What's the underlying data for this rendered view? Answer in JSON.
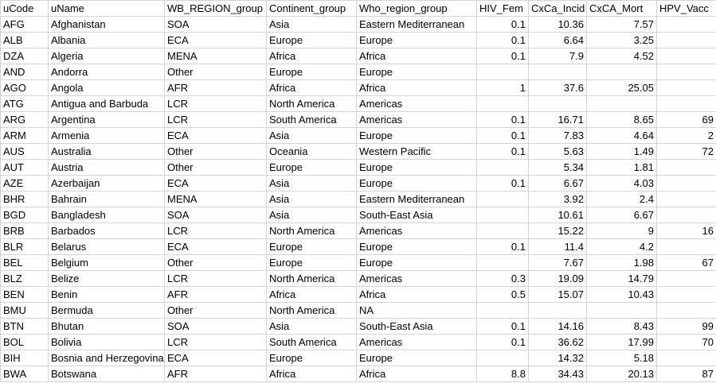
{
  "columns": [
    "uCode",
    "uName",
    "WB_REGION_group",
    "Continent_group",
    "Who_region_group",
    "HIV_Fem",
    "CxCa_Incid",
    "CxCA_Mort",
    "HPV_Vacc"
  ],
  "rows": [
    [
      "AFG",
      "Afghanistan",
      "SOA",
      "Asia",
      "Eastern Mediterranean",
      "0.1",
      "10.36",
      "7.57",
      ""
    ],
    [
      "ALB",
      "Albania",
      "ECA",
      "Europe",
      "Europe",
      "0.1",
      "6.64",
      "3.25",
      ""
    ],
    [
      "DZA",
      "Algeria",
      "MENA",
      "Africa",
      "Africa",
      "0.1",
      "7.9",
      "4.52",
      ""
    ],
    [
      "AND",
      "Andorra",
      "Other",
      "Europe",
      "Europe",
      "",
      "",
      "",
      ""
    ],
    [
      "AGO",
      "Angola",
      "AFR",
      "Africa",
      "Africa",
      "1",
      "37.6",
      "25.05",
      ""
    ],
    [
      "ATG",
      "Antigua and Barbuda",
      "LCR",
      "North America",
      "Americas",
      "",
      "",
      "",
      ""
    ],
    [
      "ARG",
      "Argentina",
      "LCR",
      "South America",
      "Americas",
      "0.1",
      "16.71",
      "8.65",
      "69"
    ],
    [
      "ARM",
      "Armenia",
      "ECA",
      "Asia",
      "Europe",
      "0.1",
      "7.83",
      "4.64",
      "2"
    ],
    [
      "AUS",
      "Australia",
      "Other",
      "Oceania",
      "Western Pacific",
      "0.1",
      "5.63",
      "1.49",
      "72"
    ],
    [
      "AUT",
      "Austria",
      "Other",
      "Europe",
      "Europe",
      "",
      "5.34",
      "1.81",
      ""
    ],
    [
      "AZE",
      "Azerbaijan",
      "ECA",
      "Asia",
      "Europe",
      "0.1",
      "6.67",
      "4.03",
      ""
    ],
    [
      "BHR",
      "Bahrain",
      "MENA",
      "Asia",
      "Eastern Mediterranean",
      "",
      "3.92",
      "2.4",
      ""
    ],
    [
      "BGD",
      "Bangladesh",
      "SOA",
      "Asia",
      "South-East Asia",
      "",
      "10.61",
      "6.67",
      ""
    ],
    [
      "BRB",
      "Barbados",
      "LCR",
      "North America",
      "Americas",
      "",
      "15.22",
      "9",
      "16"
    ],
    [
      "BLR",
      "Belarus",
      "ECA",
      "Europe",
      "Europe",
      "0.1",
      "11.4",
      "4.2",
      ""
    ],
    [
      "BEL",
      "Belgium",
      "Other",
      "Europe",
      "Europe",
      "",
      "7.67",
      "1.98",
      "67"
    ],
    [
      "BLZ",
      "Belize",
      "LCR",
      "North America",
      "Americas",
      "0.3",
      "19.09",
      "14.79",
      ""
    ],
    [
      "BEN",
      "Benin",
      "AFR",
      "Africa",
      "Africa",
      "0.5",
      "15.07",
      "10.43",
      ""
    ],
    [
      "BMU",
      "Bermuda",
      "Other",
      "North America",
      "NA",
      "",
      "",
      "",
      ""
    ],
    [
      "BTN",
      "Bhutan",
      "SOA",
      "Asia",
      "South-East Asia",
      "0.1",
      "14.16",
      "8.43",
      "99"
    ],
    [
      "BOL",
      "Bolivia",
      "LCR",
      "South America",
      "Americas",
      "0.1",
      "36.62",
      "17.99",
      "70"
    ],
    [
      "BIH",
      "Bosnia and Herzegovina",
      "ECA",
      "Europe",
      "Europe",
      "",
      "14.32",
      "5.18",
      ""
    ],
    [
      "BWA",
      "Botswana",
      "AFR",
      "Africa",
      "Africa",
      "8.8",
      "34.43",
      "20.13",
      "87"
    ]
  ]
}
